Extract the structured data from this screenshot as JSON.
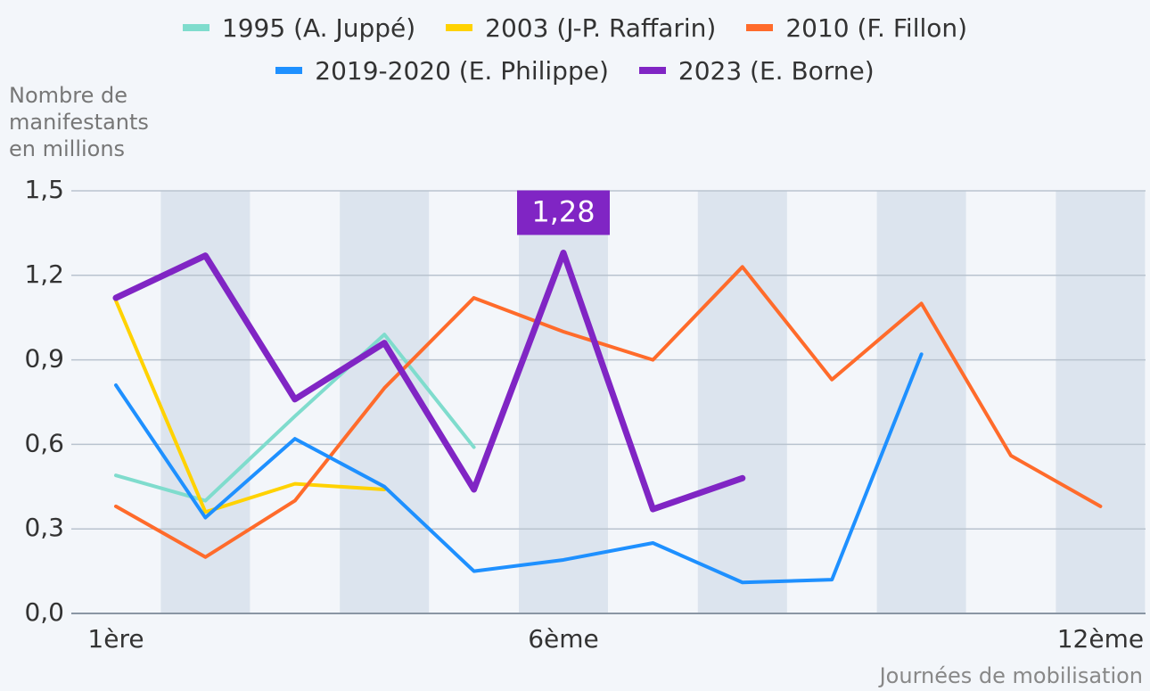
{
  "chart_data": {
    "type": "line",
    "y_label": "Nombre de manifestants en millions",
    "x_label": "Journées de mobilisation",
    "categories": [
      "1ère",
      null,
      null,
      null,
      null,
      "6ème",
      null,
      null,
      null,
      null,
      null,
      "12ème"
    ],
    "ylim": [
      0,
      1.5
    ],
    "yticks": [
      {
        "value": 0,
        "label": "0,0"
      },
      {
        "value": 0.3,
        "label": "0,3"
      },
      {
        "value": 0.6,
        "label": "0,6"
      },
      {
        "value": 0.9,
        "label": "0,9"
      },
      {
        "value": 1.2,
        "label": "1,2"
      },
      {
        "value": 1.5,
        "label": "1,5"
      }
    ],
    "grid": true,
    "series": [
      {
        "name": "1995 (A. Juppé)",
        "color": "#7fdccd",
        "values": [
          0.49,
          0.4,
          0.7,
          0.99,
          0.59,
          null,
          null,
          null,
          null,
          null,
          null,
          null
        ]
      },
      {
        "name": "2003 (J-P. Raffarin)",
        "color": "#ffd200",
        "values": [
          1.11,
          0.36,
          0.46,
          0.44,
          null,
          null,
          null,
          null,
          null,
          null,
          null,
          null
        ]
      },
      {
        "name": "2010 (F. Fillon)",
        "color": "#ff6b2b",
        "values": [
          0.38,
          0.2,
          0.4,
          0.8,
          1.12,
          1.0,
          0.9,
          1.23,
          0.83,
          1.1,
          0.56,
          0.38
        ]
      },
      {
        "name": "2019-2020 (E. Philippe)",
        "color": "#1e90ff",
        "values": [
          0.81,
          0.34,
          0.62,
          0.45,
          0.15,
          0.19,
          0.25,
          0.11,
          0.12,
          0.92,
          null,
          null
        ]
      },
      {
        "name": "2023 (E. Borne)",
        "color": "#8025c4",
        "values": [
          1.12,
          1.27,
          0.76,
          0.96,
          0.44,
          1.28,
          0.37,
          0.48,
          null,
          null,
          null,
          null
        ],
        "value_labels": [
          null,
          null,
          null,
          null,
          null,
          "1,28",
          null,
          null,
          null,
          null,
          null,
          null
        ]
      }
    ]
  }
}
